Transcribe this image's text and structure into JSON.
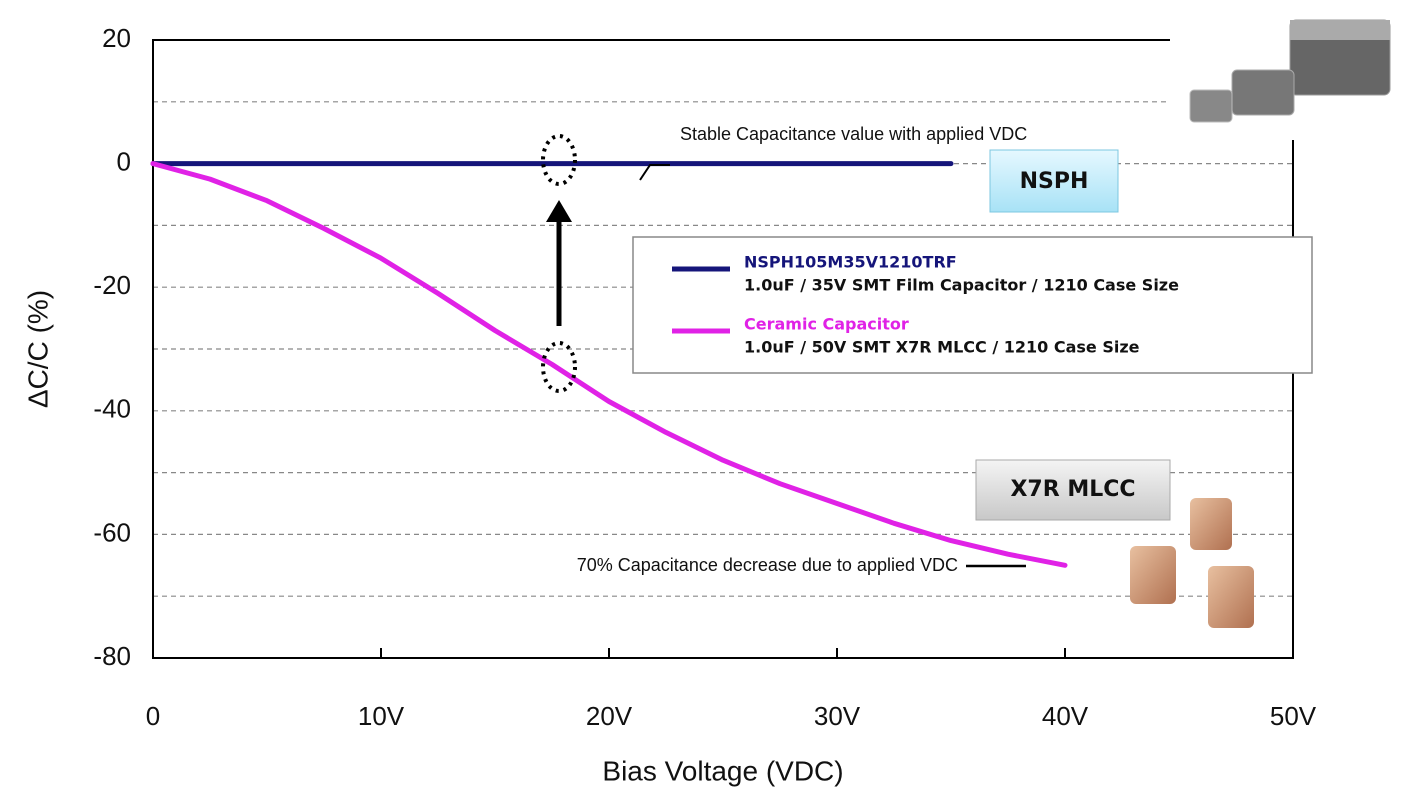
{
  "chart_data": {
    "type": "line",
    "xlabel": "Bias Voltage (VDC)",
    "ylabel": "ΔC/C (%)",
    "xlim": [
      0,
      50
    ],
    "ylim": [
      -80,
      20
    ],
    "xticks": [
      0,
      {
        "value": 10,
        "label": "10V"
      },
      {
        "value": 20,
        "label": "20V"
      },
      {
        "value": 30,
        "label": "30V"
      },
      {
        "value": 40,
        "label": "40V"
      },
      {
        "value": 50,
        "label": "50V"
      }
    ],
    "yticks": [
      20,
      0,
      -20,
      -40,
      -60,
      -80
    ],
    "minor_yticks": [
      10,
      -10,
      -30,
      -50,
      -70
    ],
    "grid": true,
    "series": [
      {
        "name": "NSPH105M35V1210TRF",
        "description": "1.0uF  / 35V SMT Film Capacitor / 1210 Case Size",
        "color": "#15157a",
        "x": [
          0,
          35
        ],
        "values": [
          0,
          0
        ]
      },
      {
        "name": "Ceramic Capacitor",
        "description": "1.0uF  / 50V SMT X7R MLCC / 1210 Case Size",
        "color": "#e022e6",
        "x": [
          0,
          2.5,
          5,
          7.5,
          10,
          12.5,
          15,
          17.5,
          20,
          22.5,
          25,
          27.5,
          30,
          32.5,
          35,
          37.5,
          40
        ],
        "values": [
          0,
          -2.5,
          -6,
          -10.5,
          -15.3,
          -21,
          -27,
          -32.5,
          -38.5,
          -43.5,
          -48,
          -51.8,
          -55,
          -58.2,
          -61,
          -63.2,
          -65
        ]
      }
    ],
    "annotations": [
      "Stable Capacitance value with applied VDC",
      "70% Capacitance decrease due to applied VDC",
      "NSPH",
      "X7R MLCC"
    ]
  }
}
